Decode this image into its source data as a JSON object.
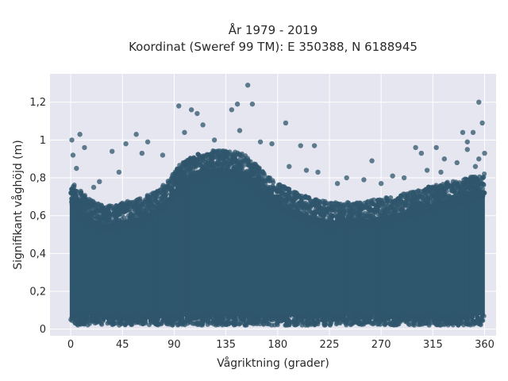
{
  "chart_data": {
    "type": "scatter",
    "title_line1": "År 1979 - 2019",
    "title_line2": "Koordinat (Sweref 99 TM): E 350388, N 6188945",
    "xlabel": "Vågriktning (grader)",
    "ylabel": "Signifikant våghöjd (m)",
    "xlim": [
      -18,
      370
    ],
    "ylim": [
      -0.035,
      1.35
    ],
    "xticks": [
      0,
      45,
      90,
      135,
      180,
      225,
      270,
      315,
      360
    ],
    "yticks": [
      0,
      0.2,
      0.4,
      0.6,
      0.8,
      1,
      1.2
    ],
    "ytick_labels": [
      "0",
      "0,2",
      "0,4",
      "0,6",
      "0,8",
      "1",
      "1,2"
    ],
    "grid": true,
    "marker_color": "#2f566c",
    "marker_opacity": 0.75,
    "background_color": "#e5e6ef",
    "x_range_of_points": [
      0,
      360
    ],
    "upper_envelope": [
      {
        "x": 0,
        "y": 0.72
      },
      {
        "x": 15,
        "y": 0.62
      },
      {
        "x": 30,
        "y": 0.58
      },
      {
        "x": 45,
        "y": 0.6
      },
      {
        "x": 60,
        "y": 0.62
      },
      {
        "x": 75,
        "y": 0.66
      },
      {
        "x": 85,
        "y": 0.72
      },
      {
        "x": 95,
        "y": 0.8
      },
      {
        "x": 110,
        "y": 0.86
      },
      {
        "x": 130,
        "y": 0.88
      },
      {
        "x": 150,
        "y": 0.86
      },
      {
        "x": 165,
        "y": 0.78
      },
      {
        "x": 180,
        "y": 0.7
      },
      {
        "x": 200,
        "y": 0.64
      },
      {
        "x": 225,
        "y": 0.6
      },
      {
        "x": 250,
        "y": 0.6
      },
      {
        "x": 270,
        "y": 0.62
      },
      {
        "x": 300,
        "y": 0.66
      },
      {
        "x": 320,
        "y": 0.7
      },
      {
        "x": 340,
        "y": 0.72
      },
      {
        "x": 360,
        "y": 0.76
      }
    ],
    "outliers": [
      {
        "x": 154,
        "y": 1.29
      },
      {
        "x": 145,
        "y": 1.19
      },
      {
        "x": 158,
        "y": 1.19
      },
      {
        "x": 94,
        "y": 1.18
      },
      {
        "x": 355,
        "y": 1.2
      },
      {
        "x": 140,
        "y": 1.16
      },
      {
        "x": 105,
        "y": 1.16
      },
      {
        "x": 110,
        "y": 1.14
      },
      {
        "x": 187,
        "y": 1.09
      },
      {
        "x": 358,
        "y": 1.09
      },
      {
        "x": 115,
        "y": 1.08
      },
      {
        "x": 147,
        "y": 1.05
      },
      {
        "x": 8,
        "y": 1.03
      },
      {
        "x": 57,
        "y": 1.03
      },
      {
        "x": 341,
        "y": 1.04
      },
      {
        "x": 350,
        "y": 1.04
      },
      {
        "x": 1,
        "y": 1.0
      },
      {
        "x": 99,
        "y": 1.04
      },
      {
        "x": 125,
        "y": 1.0
      },
      {
        "x": 48,
        "y": 0.98
      },
      {
        "x": 67,
        "y": 0.99
      },
      {
        "x": 12,
        "y": 0.96
      },
      {
        "x": 165,
        "y": 0.99
      },
      {
        "x": 175,
        "y": 0.98
      },
      {
        "x": 200,
        "y": 0.97
      },
      {
        "x": 212,
        "y": 0.97
      },
      {
        "x": 300,
        "y": 0.96
      },
      {
        "x": 318,
        "y": 0.96
      },
      {
        "x": 345,
        "y": 0.99
      },
      {
        "x": 36,
        "y": 0.94
      },
      {
        "x": 62,
        "y": 0.93
      },
      {
        "x": 305,
        "y": 0.93
      },
      {
        "x": 345,
        "y": 0.95
      },
      {
        "x": 2,
        "y": 0.92
      },
      {
        "x": 80,
        "y": 0.92
      },
      {
        "x": 280,
        "y": 0.81
      },
      {
        "x": 262,
        "y": 0.89
      },
      {
        "x": 325,
        "y": 0.9
      },
      {
        "x": 336,
        "y": 0.88
      },
      {
        "x": 25,
        "y": 0.78
      },
      {
        "x": 42,
        "y": 0.83
      },
      {
        "x": 190,
        "y": 0.86
      },
      {
        "x": 205,
        "y": 0.84
      },
      {
        "x": 215,
        "y": 0.83
      },
      {
        "x": 240,
        "y": 0.8
      },
      {
        "x": 255,
        "y": 0.79
      },
      {
        "x": 290,
        "y": 0.8
      },
      {
        "x": 310,
        "y": 0.84
      },
      {
        "x": 5,
        "y": 0.85
      },
      {
        "x": 20,
        "y": 0.75
      },
      {
        "x": 232,
        "y": 0.77
      },
      {
        "x": 270,
        "y": 0.77
      },
      {
        "x": 322,
        "y": 0.83
      },
      {
        "x": 352,
        "y": 0.86
      },
      {
        "x": 355,
        "y": 0.9
      },
      {
        "x": 360,
        "y": 0.93
      }
    ]
  }
}
